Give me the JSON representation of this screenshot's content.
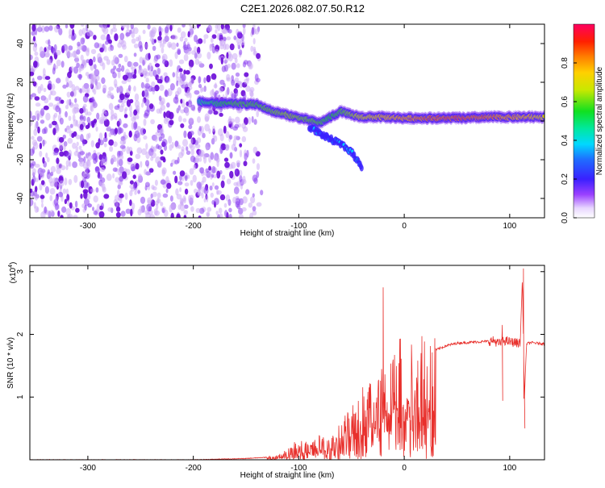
{
  "page_title": "C2E1.2026.082.07.50.R12",
  "colors": {
    "snr_line": "#e8302c",
    "axis": "#000000",
    "spectrogram_noise": "#8a3ff0",
    "spectrogram_dense": "#6a0ad8"
  },
  "colorbar": {
    "label": "Normalized spectral amplitude",
    "ticks": [
      "0.0",
      "0.2",
      "0.4",
      "0.6",
      "0.8"
    ],
    "tick_values": [
      0.0,
      0.2,
      0.4,
      0.6,
      0.8
    ],
    "range": [
      0,
      1
    ],
    "colormap": "rainbow"
  },
  "chart_data": [
    {
      "type": "heatmap",
      "title": "",
      "xlabel": "Height of straight line (km)",
      "ylabel": "Frequency (Hz)",
      "xlim": [
        -355,
        133
      ],
      "ylim": [
        -50,
        50
      ],
      "x_ticks": [
        -300,
        -200,
        -100,
        0,
        100
      ],
      "x_tick_labels": [
        "-300",
        "-200",
        "-100",
        "0",
        "100"
      ],
      "y_ticks": [
        -40,
        -20,
        0,
        20,
        40
      ],
      "y_tick_labels": [
        "-40",
        "-20",
        "0",
        "20",
        "40"
      ],
      "noise_region_x": [
        -355,
        -135
      ],
      "noise_amplitude": 0.2,
      "signal_trace": {
        "x": [
          -195,
          -180,
          -160,
          -140,
          -125,
          -110,
          -95,
          -80,
          -70,
          -60,
          -50,
          -40,
          -20,
          0,
          20,
          40,
          60,
          80,
          100,
          120,
          133
        ],
        "freq": [
          10,
          9,
          9,
          8.5,
          5,
          3,
          1,
          -1,
          2,
          5,
          3,
          2,
          2,
          1.5,
          1.5,
          1.5,
          1.5,
          2,
          2,
          2,
          2
        ],
        "amplitude": [
          0.3,
          0.4,
          0.5,
          0.5,
          0.55,
          0.6,
          0.55,
          0.5,
          0.45,
          0.5,
          0.6,
          0.7,
          0.8,
          0.85,
          0.9,
          0.95,
          0.95,
          0.9,
          0.85,
          0.8,
          0.75
        ]
      },
      "branch_trace": {
        "x": [
          -90,
          -75,
          -60,
          -50,
          -45,
          -40
        ],
        "freq": [
          -3,
          -8,
          -12,
          -16,
          -20,
          -24
        ]
      },
      "grid": false
    },
    {
      "type": "line",
      "title": "",
      "xlabel": "Height of straight line (km)",
      "ylabel": "SNR (10 * v/v)",
      "y_multiplier_label": "(x10",
      "y_multiplier_exponent": "4",
      "xlim": [
        -355,
        133
      ],
      "ylim": [
        0,
        3.1
      ],
      "x_ticks": [
        -300,
        -200,
        -100,
        0,
        100
      ],
      "x_tick_labels": [
        "-300",
        "-200",
        "-100",
        "0",
        "100"
      ],
      "y_ticks": [
        1,
        2,
        3
      ],
      "y_tick_labels": [
        "1",
        "2",
        "3"
      ],
      "series": [
        {
          "x": [
            -355,
            -300,
            -250,
            -200,
            -150,
            -120,
            -110,
            -100,
            -90,
            -80,
            -70,
            -60,
            -50,
            -40,
            -30,
            -22,
            -20,
            -15,
            -10,
            0,
            10,
            20,
            30,
            40,
            50,
            60,
            70,
            80,
            85,
            90,
            95,
            100,
            105,
            110,
            112,
            114,
            116,
            120,
            125,
            133
          ],
          "y": [
            0.0,
            0.0,
            0.0,
            0.0,
            0.02,
            0.05,
            0.15,
            0.25,
            0.2,
            0.3,
            0.25,
            0.45,
            0.7,
            0.9,
            1.1,
            1.2,
            1.3,
            1.35,
            1.45,
            1.5,
            1.55,
            1.6,
            1.75,
            1.82,
            1.86,
            1.87,
            1.88,
            1.89,
            1.9,
            1.85,
            1.9,
            1.88,
            1.87,
            1.86,
            2.9,
            1.0,
            1.85,
            1.87,
            1.86,
            1.85
          ]
        }
      ],
      "spikes": [
        {
          "x": -20,
          "y": 2.75
        },
        {
          "x": 93,
          "y": 2.15
        },
        {
          "x": 113,
          "y": 3.05
        },
        {
          "x": 114,
          "y": 0.95
        }
      ],
      "grid": false
    }
  ]
}
